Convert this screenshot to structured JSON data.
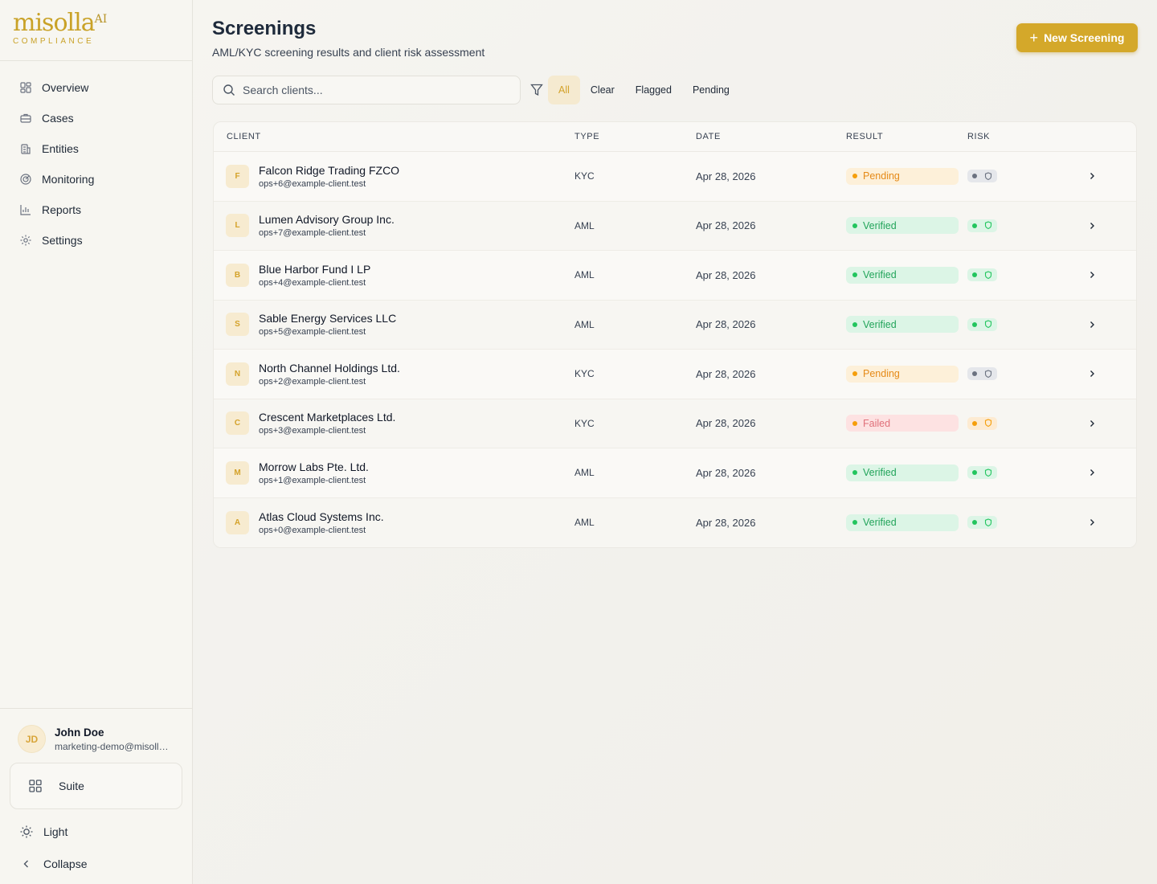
{
  "brand": {
    "name": "misolla",
    "suffix": "AI",
    "sub": "COMPLIANCE"
  },
  "nav": [
    {
      "label": "Overview",
      "icon": "overview-icon"
    },
    {
      "label": "Cases",
      "icon": "briefcase-icon"
    },
    {
      "label": "Entities",
      "icon": "building-icon"
    },
    {
      "label": "Monitoring",
      "icon": "radar-icon"
    },
    {
      "label": "Reports",
      "icon": "bar-chart-icon"
    },
    {
      "label": "Settings",
      "icon": "gear-icon"
    }
  ],
  "user": {
    "initials": "JD",
    "name": "John Doe",
    "email": "marketing-demo@misolla.ai"
  },
  "bottom": {
    "suite": "Suite",
    "theme": "Light",
    "collapse": "Collapse"
  },
  "page": {
    "title": "Screenings",
    "subtitle": "AML/KYC screening results and client risk assessment",
    "new_button": "New Screening",
    "search_placeholder": "Search clients...",
    "filters": [
      "All",
      "Clear",
      "Flagged",
      "Pending"
    ],
    "active_filter": "All"
  },
  "table": {
    "headers": {
      "client": "CLIENT",
      "type": "TYPE",
      "date": "DATE",
      "result": "RESULT",
      "risk": "RISK"
    },
    "rows": [
      {
        "initial": "F",
        "name": "Falcon Ridge Trading FZCO",
        "email": "ops+6@example-client.test",
        "type": "KYC",
        "date": "Apr 28, 2026",
        "result": "Pending",
        "risk": "gray"
      },
      {
        "initial": "L",
        "name": "Lumen Advisory Group Inc.",
        "email": "ops+7@example-client.test",
        "type": "AML",
        "date": "Apr 28, 2026",
        "result": "Verified",
        "risk": "green"
      },
      {
        "initial": "B",
        "name": "Blue Harbor Fund I LP",
        "email": "ops+4@example-client.test",
        "type": "AML",
        "date": "Apr 28, 2026",
        "result": "Verified",
        "risk": "green"
      },
      {
        "initial": "S",
        "name": "Sable Energy Services LLC",
        "email": "ops+5@example-client.test",
        "type": "AML",
        "date": "Apr 28, 2026",
        "result": "Verified",
        "risk": "green"
      },
      {
        "initial": "N",
        "name": "North Channel Holdings Ltd.",
        "email": "ops+2@example-client.test",
        "type": "KYC",
        "date": "Apr 28, 2026",
        "result": "Pending",
        "risk": "gray"
      },
      {
        "initial": "C",
        "name": "Crescent Marketplaces Ltd.",
        "email": "ops+3@example-client.test",
        "type": "KYC",
        "date": "Apr 28, 2026",
        "result": "Failed",
        "risk": "orange"
      },
      {
        "initial": "M",
        "name": "Morrow Labs Pte. Ltd.",
        "email": "ops+1@example-client.test",
        "type": "AML",
        "date": "Apr 28, 2026",
        "result": "Verified",
        "risk": "green"
      },
      {
        "initial": "A",
        "name": "Atlas Cloud Systems Inc.",
        "email": "ops+0@example-client.test",
        "type": "AML",
        "date": "Apr 28, 2026",
        "result": "Verified",
        "risk": "green"
      }
    ]
  },
  "colors": {
    "accent": "#d4a82a",
    "verified": "#22c55e",
    "pending": "#f59e0b",
    "failed": "#e0707a"
  }
}
